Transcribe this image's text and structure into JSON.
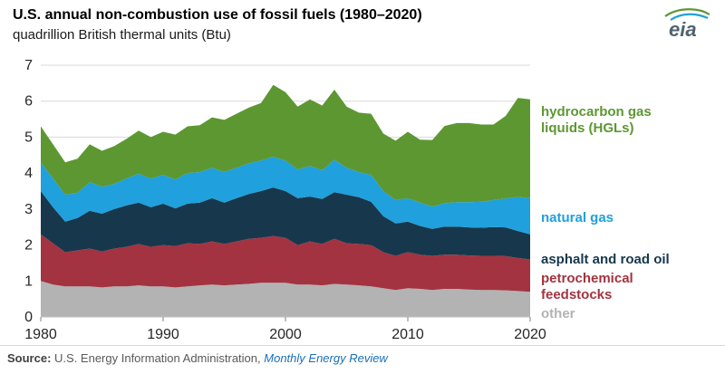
{
  "header": {
    "title": "U.S. annual non-combustion use of fossil fuels (1980–2020)",
    "subtitle": "quadrillion British thermal units (Btu)",
    "logo": "eia"
  },
  "legend": {
    "hgl": "hydrocarbon gas liquids (HGLs)",
    "natural_gas": "natural gas",
    "asphalt": "asphalt and road oil",
    "petrochemical": "petrochemical feedstocks",
    "other": "other"
  },
  "footer": {
    "source_label": "Source:",
    "source_text": "U.S. Energy Information Administration,",
    "source_link": "Monthly Energy Review"
  },
  "colors": {
    "grid": "#d9d9d9",
    "axis_text": "#262626",
    "link": "#1a70b8",
    "logo_text": "#51626f"
  },
  "chart_data": {
    "type": "area",
    "stacked": true,
    "title": "U.S. annual non-combustion use of fossil fuels (1980–2020)",
    "ylabel": "quadrillion British thermal units (Btu)",
    "xlabel": "",
    "ylim": [
      0,
      7
    ],
    "yticks": [
      0,
      1,
      2,
      3,
      4,
      5,
      6,
      7
    ],
    "xticks": [
      1980,
      1990,
      2000,
      2010,
      2020
    ],
    "grid": true,
    "legend_position": "right",
    "x": [
      1980,
      1981,
      1982,
      1983,
      1984,
      1985,
      1986,
      1987,
      1988,
      1989,
      1990,
      1991,
      1992,
      1993,
      1994,
      1995,
      1996,
      1997,
      1998,
      1999,
      2000,
      2001,
      2002,
      2003,
      2004,
      2005,
      2006,
      2007,
      2008,
      2009,
      2010,
      2011,
      2012,
      2013,
      2014,
      2015,
      2016,
      2017,
      2018,
      2019,
      2020
    ],
    "series": [
      {
        "name": "other",
        "color": "#b3b3b3",
        "values": [
          1.0,
          0.9,
          0.85,
          0.85,
          0.85,
          0.82,
          0.85,
          0.85,
          0.88,
          0.85,
          0.85,
          0.82,
          0.85,
          0.88,
          0.9,
          0.88,
          0.9,
          0.92,
          0.95,
          0.95,
          0.95,
          0.9,
          0.9,
          0.88,
          0.92,
          0.9,
          0.88,
          0.85,
          0.8,
          0.75,
          0.8,
          0.78,
          0.75,
          0.78,
          0.78,
          0.76,
          0.75,
          0.75,
          0.74,
          0.72,
          0.7
        ]
      },
      {
        "name": "petrochemical feedstocks",
        "color": "#a33340",
        "values": [
          1.3,
          1.15,
          0.95,
          1.0,
          1.05,
          1.0,
          1.05,
          1.1,
          1.15,
          1.1,
          1.15,
          1.15,
          1.2,
          1.15,
          1.2,
          1.15,
          1.2,
          1.25,
          1.25,
          1.3,
          1.25,
          1.1,
          1.2,
          1.15,
          1.25,
          1.15,
          1.15,
          1.15,
          1.0,
          0.95,
          1.0,
          0.95,
          0.95,
          0.95,
          0.95,
          0.95,
          0.95,
          0.95,
          0.95,
          0.92,
          0.9
        ]
      },
      {
        "name": "asphalt and road oil",
        "color": "#17384c",
        "values": [
          1.2,
          1.0,
          0.85,
          0.9,
          1.05,
          1.05,
          1.1,
          1.15,
          1.15,
          1.1,
          1.15,
          1.05,
          1.1,
          1.15,
          1.2,
          1.15,
          1.2,
          1.25,
          1.3,
          1.35,
          1.3,
          1.3,
          1.25,
          1.25,
          1.3,
          1.35,
          1.3,
          1.2,
          1.0,
          0.9,
          0.85,
          0.8,
          0.75,
          0.78,
          0.78,
          0.78,
          0.78,
          0.8,
          0.8,
          0.75,
          0.7
        ]
      },
      {
        "name": "natural gas",
        "color": "#20a0dc",
        "values": [
          0.8,
          0.8,
          0.75,
          0.7,
          0.8,
          0.75,
          0.7,
          0.75,
          0.8,
          0.8,
          0.8,
          0.8,
          0.85,
          0.85,
          0.85,
          0.85,
          0.85,
          0.85,
          0.85,
          0.85,
          0.85,
          0.8,
          0.85,
          0.8,
          0.9,
          0.75,
          0.7,
          0.75,
          0.7,
          0.65,
          0.65,
          0.65,
          0.62,
          0.65,
          0.68,
          0.7,
          0.72,
          0.75,
          0.8,
          0.95,
          1.0
        ]
      },
      {
        "name": "hydrocarbon gas liquids (HGLs)",
        "color": "#5d9732",
        "values": [
          1.0,
          0.95,
          0.9,
          0.95,
          1.05,
          1.0,
          1.05,
          1.1,
          1.2,
          1.15,
          1.2,
          1.25,
          1.3,
          1.3,
          1.4,
          1.45,
          1.5,
          1.55,
          1.6,
          2.0,
          1.9,
          1.75,
          1.85,
          1.8,
          1.95,
          1.7,
          1.65,
          1.7,
          1.6,
          1.65,
          1.85,
          1.75,
          1.85,
          2.15,
          2.2,
          2.2,
          2.15,
          2.1,
          2.3,
          2.75,
          2.75
        ]
      }
    ]
  }
}
